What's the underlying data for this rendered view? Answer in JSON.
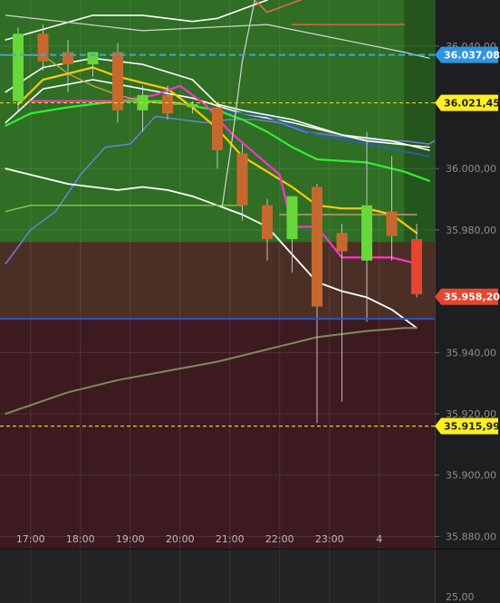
{
  "chart_data": {
    "type": "candlestick",
    "title": "",
    "ylim": [
      35.876,
      36.055
    ],
    "y_ticks": [
      {
        "value": 36.04,
        "label": "36.040,00"
      },
      {
        "value": 36.0,
        "label": "36.000,00"
      },
      {
        "value": 35.98,
        "label": "35.980,00"
      },
      {
        "value": 35.94,
        "label": "35.940,00"
      },
      {
        "value": 35.92,
        "label": "35.920,00"
      },
      {
        "value": 35.9,
        "label": "35.900,00"
      },
      {
        "value": 35.88,
        "label": "35.880,00"
      }
    ],
    "x_ticks": [
      {
        "index": 0.5,
        "label": "17:00"
      },
      {
        "index": 2.5,
        "label": "18:00"
      },
      {
        "index": 4.5,
        "label": "19:00"
      },
      {
        "index": 6.5,
        "label": "20:00"
      },
      {
        "index": 8.5,
        "label": "21:00"
      },
      {
        "index": 10.5,
        "label": "22:00"
      },
      {
        "index": 12.5,
        "label": "23:00"
      },
      {
        "index": 14.5,
        "label": "4"
      }
    ],
    "candles": [
      {
        "o": 36.022,
        "h": 36.046,
        "l": 36.019,
        "c": 36.044
      },
      {
        "o": 36.044,
        "h": 36.047,
        "l": 36.032,
        "c": 36.035
      },
      {
        "o": 36.038,
        "h": 36.042,
        "l": 36.025,
        "c": 36.034
      },
      {
        "o": 36.034,
        "h": 36.038,
        "l": 36.03,
        "c": 36.038
      },
      {
        "o": 36.038,
        "h": 36.041,
        "l": 36.015,
        "c": 36.019
      },
      {
        "o": 36.019,
        "h": 36.027,
        "l": 36.012,
        "c": 36.024
      },
      {
        "o": 36.024,
        "h": 36.027,
        "l": 36.016,
        "c": 36.018
      },
      {
        "o": 36.02,
        "h": 36.022,
        "l": 36.018,
        "c": 36.021
      },
      {
        "o": 36.02,
        "h": 36.021,
        "l": 36.0,
        "c": 36.006
      },
      {
        "o": 36.005,
        "h": 36.008,
        "l": 35.983,
        "c": 35.988
      },
      {
        "o": 35.988,
        "h": 35.99,
        "l": 35.97,
        "c": 35.977
      },
      {
        "o": 35.977,
        "h": 35.99,
        "l": 35.966,
        "c": 35.991
      },
      {
        "o": 35.994,
        "h": 35.995,
        "l": 35.917,
        "c": 35.955
      },
      {
        "o": 35.979,
        "h": 35.982,
        "l": 35.924,
        "c": 35.973
      },
      {
        "o": 35.97,
        "h": 36.012,
        "l": 35.95,
        "c": 35.988
      },
      {
        "o": 35.986,
        "h": 36.004,
        "l": 35.97,
        "c": 35.978
      },
      {
        "o": 35.977,
        "h": 35.982,
        "l": 35.958,
        "c": 35.959
      }
    ],
    "candle_colors": {
      "up": "#66d83a",
      "down": "#c7692f",
      "last_down": "#e6452e"
    },
    "zones": [
      {
        "from": 35.976,
        "to": 36.055,
        "color": "#2f6e24"
      },
      {
        "from": 35.951,
        "to": 35.976,
        "color": "#4b2f26"
      },
      {
        "from": 35.876,
        "to": 35.951,
        "color": "#3c1a20"
      }
    ],
    "zone_split_index": 15.5,
    "series": [
      {
        "color": "#ffffff",
        "width": 1.6,
        "points": [
          [
            -0.5,
            36.042
          ],
          [
            3,
            36.05
          ],
          [
            5,
            36.05
          ],
          [
            7,
            36.048
          ],
          [
            8,
            36.049
          ],
          [
            10,
            36.055
          ]
        ]
      },
      {
        "color": "#e66a44",
        "width": 1.6,
        "points": [
          [
            9.5,
            36.055
          ],
          [
            10,
            36.051
          ],
          [
            11,
            36.054
          ],
          [
            12,
            36.057
          ]
        ]
      },
      {
        "color": "#e66a44",
        "width": 1.4,
        "points": [
          [
            11,
            36.047
          ],
          [
            15.5,
            36.047
          ]
        ]
      },
      {
        "color": "#d8d8d8",
        "width": 1.2,
        "points": [
          [
            -0.5,
            36.05
          ],
          [
            5,
            36.045
          ],
          [
            10,
            36.047
          ],
          [
            15.5,
            36.038
          ],
          [
            16.5,
            36.036
          ]
        ]
      },
      {
        "color": "#6d7dd8",
        "width": 1.6,
        "points": [
          [
            -0.5,
            35.969
          ],
          [
            0.5,
            35.98
          ],
          [
            1.5,
            35.986
          ],
          [
            2.5,
            35.998
          ],
          [
            3.5,
            36.007
          ],
          [
            4.5,
            36.008
          ],
          [
            5.5,
            36.017
          ],
          [
            6.5,
            36.016
          ],
          [
            7.5,
            36.015
          ],
          [
            8.5,
            36.016
          ],
          [
            9.5,
            36.016
          ],
          [
            10.5,
            36.015
          ],
          [
            11.5,
            36.012
          ],
          [
            12.5,
            36.011
          ],
          [
            13.5,
            36.01
          ],
          [
            14.5,
            36.009
          ],
          [
            15.5,
            36.009
          ],
          [
            16.5,
            36.008
          ],
          [
            17.5,
            36.013
          ]
        ]
      },
      {
        "color": "#ffffff",
        "width": 1.6,
        "points": [
          [
            -0.5,
            36.025
          ],
          [
            1,
            36.033
          ],
          [
            3,
            36.036
          ],
          [
            5,
            36.034
          ],
          [
            7,
            36.029
          ],
          [
            8,
            36.021
          ],
          [
            9,
            36.019
          ],
          [
            11,
            36.016
          ],
          [
            13,
            36.011
          ],
          [
            15,
            36.009
          ],
          [
            16.5,
            36.006
          ]
        ]
      },
      {
        "color": "#ffffff",
        "width": 1.6,
        "points": [
          [
            -0.5,
            36.015
          ],
          [
            1,
            36.026
          ],
          [
            3,
            36.029
          ],
          [
            5,
            36.026
          ],
          [
            7,
            36.023
          ],
          [
            9,
            36.018
          ],
          [
            11,
            36.015
          ],
          [
            12,
            36.013
          ],
          [
            14,
            36.009
          ],
          [
            16.5,
            36.007
          ]
        ]
      },
      {
        "color": "#2f5db8",
        "width": 1.8,
        "points": [
          [
            6,
            36.022
          ],
          [
            8,
            36.019
          ],
          [
            10,
            36.017
          ],
          [
            12,
            36.011
          ],
          [
            14,
            36.008
          ],
          [
            16.5,
            36.004
          ]
        ]
      },
      {
        "color": "#33ee33",
        "width": 2.2,
        "points": [
          [
            -0.5,
            36.014
          ],
          [
            0.5,
            36.018
          ],
          [
            2,
            36.02
          ],
          [
            4,
            36.022
          ],
          [
            6,
            36.022
          ],
          [
            8,
            36.019
          ],
          [
            9,
            36.016
          ],
          [
            10,
            36.012
          ],
          [
            11,
            36.007
          ],
          [
            12,
            36.003
          ],
          [
            14,
            36.002
          ],
          [
            15.5,
            35.999
          ],
          [
            16.5,
            35.996
          ]
        ]
      },
      {
        "color": "#ffcc00",
        "width": 2.2,
        "points": [
          [
            0,
            36.021
          ],
          [
            1,
            36.029
          ],
          [
            2,
            36.031
          ],
          [
            3,
            36.033
          ],
          [
            4,
            36.03
          ],
          [
            5,
            36.028
          ],
          [
            6,
            36.026
          ],
          [
            7,
            36.02
          ],
          [
            8,
            36.013
          ],
          [
            9,
            36.004
          ],
          [
            10,
            35.999
          ],
          [
            11,
            35.994
          ],
          [
            12,
            35.988
          ],
          [
            13,
            35.987
          ],
          [
            14,
            35.987
          ],
          [
            15,
            35.985
          ],
          [
            16,
            35.979
          ]
        ]
      },
      {
        "color": "#ff33cc",
        "width": 2.2,
        "points": [
          [
            0.5,
            36.022
          ],
          [
            2,
            36.022
          ],
          [
            4,
            36.022
          ],
          [
            5.5,
            36.024
          ],
          [
            6.5,
            36.027
          ],
          [
            7.5,
            36.021
          ],
          [
            8.5,
            36.012
          ],
          [
            9.5,
            36.005
          ],
          [
            10.5,
            35.998
          ],
          [
            11,
            35.981
          ],
          [
            12,
            35.981
          ],
          [
            13,
            35.971
          ],
          [
            14,
            35.971
          ],
          [
            15,
            35.971
          ],
          [
            16,
            35.969
          ]
        ]
      },
      {
        "color": "#ffffff",
        "width": 1.8,
        "points": [
          [
            -0.5,
            36.0
          ],
          [
            2,
            35.995
          ],
          [
            4,
            35.993
          ],
          [
            5,
            35.994
          ],
          [
            6,
            35.993
          ],
          [
            7,
            35.991
          ],
          [
            8,
            35.988
          ],
          [
            9,
            35.985
          ],
          [
            10,
            35.981
          ],
          [
            11,
            35.972
          ],
          [
            12,
            35.963
          ],
          [
            13,
            35.96
          ],
          [
            14,
            35.958
          ],
          [
            15,
            35.954
          ],
          [
            16,
            35.948
          ]
        ]
      },
      {
        "color": "#7e8a5a",
        "width": 2,
        "points": [
          [
            -0.5,
            35.92
          ],
          [
            2,
            35.927
          ],
          [
            4,
            35.931
          ],
          [
            6,
            35.934
          ],
          [
            8,
            35.937
          ],
          [
            10,
            35.941
          ],
          [
            12,
            35.945
          ],
          [
            14,
            35.947
          ],
          [
            15.5,
            35.948
          ],
          [
            16,
            35.948
          ]
        ]
      },
      {
        "color": "#8fc64c",
        "width": 1.4,
        "points": [
          [
            -0.5,
            35.986
          ],
          [
            0.5,
            35.988
          ],
          [
            8,
            35.988
          ],
          [
            9,
            35.988
          ]
        ]
      },
      {
        "color": "#cccccc",
        "width": 1.3,
        "points": [
          [
            8.2,
            35.988
          ],
          [
            8.6,
            36.01
          ],
          [
            9,
            36.035
          ],
          [
            9.5,
            36.055
          ]
        ]
      },
      {
        "color": "#c8a040",
        "width": 1.4,
        "points": [
          [
            -0.5,
            36.037
          ],
          [
            1,
            36.037
          ],
          [
            2,
            36.031
          ],
          [
            3,
            36.027
          ],
          [
            4,
            36.024
          ],
          [
            5,
            36.022
          ],
          [
            6,
            36.021
          ],
          [
            7,
            36.021
          ]
        ]
      },
      {
        "color": "#b8a06a",
        "width": 1.4,
        "points": [
          [
            10.5,
            35.985
          ],
          [
            16,
            35.985
          ]
        ]
      }
    ],
    "levels": [
      {
        "value": 36.03708,
        "color": "#3aa7e8",
        "style": "dashed",
        "width": 2,
        "label": "36.037,08",
        "badge_color": "#2f95e0",
        "text_color": "#ffffff"
      },
      {
        "value": 36.02145,
        "color": "#e6d21c",
        "style": "dashed",
        "width": 1.2,
        "label": "36.021,45",
        "badge_color": "#ffee22",
        "text_color": "#222222"
      },
      {
        "value": 35.9582,
        "color": null,
        "style": "none",
        "width": 0,
        "label": "35.958,20",
        "badge_color": "#e5462f",
        "text_color": "#ffffff"
      },
      {
        "value": 35.951,
        "color": "#2b55c0",
        "style": "solid",
        "width": 2,
        "label": "",
        "badge_color": null,
        "text_color": null
      },
      {
        "value": 35.91599,
        "color": "#e6d21c",
        "style": "dashed",
        "width": 1.2,
        "label": "35.915,99",
        "badge_color": "#ffee22",
        "text_color": "#222222"
      }
    ],
    "lower_panel": {
      "y_tick_label": "25,00",
      "background": "#242426"
    },
    "colors": {
      "axis_background": "#1e1e20",
      "gridline": "rgba(255,255,255,0.10)",
      "panel_separator": "#0f0f10"
    }
  }
}
